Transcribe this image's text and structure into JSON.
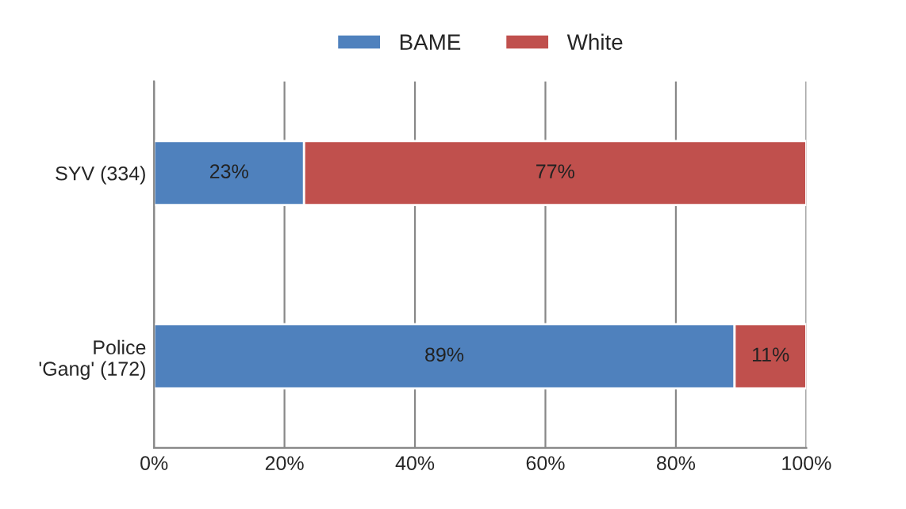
{
  "chart_data": {
    "type": "bar",
    "orientation": "horizontal",
    "stacked": true,
    "categories": [
      "SYV (334)",
      "Police\n'Gang' (172)"
    ],
    "series": [
      {
        "name": "BAME",
        "color": "#4f81bd",
        "values": [
          23,
          89
        ],
        "value_labels": [
          "23%",
          "89%"
        ]
      },
      {
        "name": "White",
        "color": "#c0504d",
        "values": [
          77,
          11
        ],
        "value_labels": [
          "77%",
          "11%"
        ]
      }
    ],
    "xlim": [
      0,
      100
    ],
    "xticks": [
      {
        "value": 0,
        "label": "0%"
      },
      {
        "value": 20,
        "label": "20%"
      },
      {
        "value": 40,
        "label": "40%"
      },
      {
        "value": 60,
        "label": "60%"
      },
      {
        "value": 80,
        "label": "80%"
      },
      {
        "value": 100,
        "label": "100%"
      }
    ],
    "grid": "x",
    "legend": "top"
  }
}
